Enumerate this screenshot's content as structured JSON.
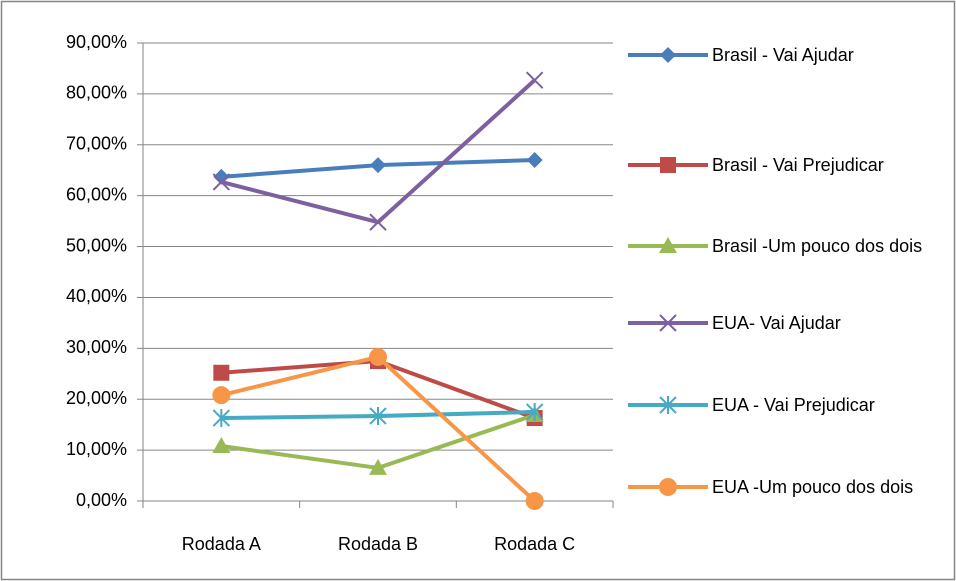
{
  "chart_data": {
    "type": "line",
    "categories": [
      "Rodada A",
      "Rodada B",
      "Rodada C"
    ],
    "series": [
      {
        "name": "Brasil - Vai Ajudar",
        "color": "#4a7ebb",
        "marker": "diamond",
        "values": [
          63.7,
          66.0,
          67.0
        ]
      },
      {
        "name": "Brasil - Vai Prejudicar",
        "color": "#be4b48",
        "marker": "square",
        "values": [
          25.2,
          27.5,
          16.3
        ]
      },
      {
        "name": "Brasil -Um pouco dos dois",
        "color": "#98b954",
        "marker": "triangle",
        "values": [
          10.8,
          6.5,
          16.9
        ]
      },
      {
        "name": "EUA- Vai Ajudar",
        "color": "#7d60a0",
        "marker": "x",
        "values": [
          62.7,
          54.8,
          82.7
        ]
      },
      {
        "name": "EUA - Vai Prejudicar",
        "color": "#46aac5",
        "marker": "star",
        "values": [
          16.3,
          16.7,
          17.5
        ]
      },
      {
        "name": "EUA -Um pouco dos dois",
        "color": "#f79646",
        "marker": "circle",
        "values": [
          20.8,
          28.3,
          0
        ]
      }
    ],
    "ylim": [
      0,
      90
    ],
    "yticks": [
      {
        "value": 0,
        "label": "0,00%"
      },
      {
        "value": 10,
        "label": "10,00%"
      },
      {
        "value": 20,
        "label": "20,00%"
      },
      {
        "value": 30,
        "label": "30,00%"
      },
      {
        "value": 40,
        "label": "40,00%"
      },
      {
        "value": 50,
        "label": "50,00%"
      },
      {
        "value": 60,
        "label": "60,00%"
      },
      {
        "value": 70,
        "label": "70,00%"
      },
      {
        "value": 80,
        "label": "80,00%"
      },
      {
        "value": 90,
        "label": "90,00%"
      }
    ],
    "grid": true,
    "legend": "right"
  }
}
